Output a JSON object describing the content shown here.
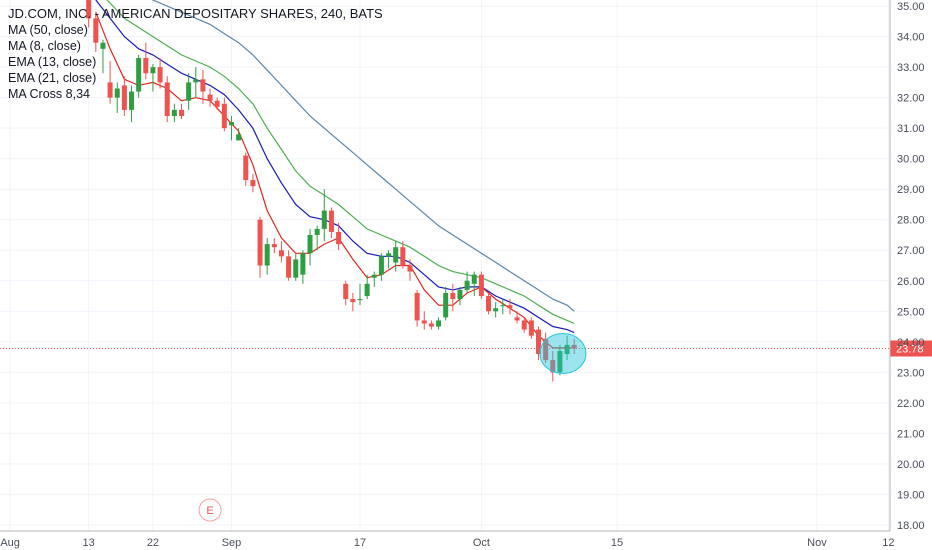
{
  "header": {
    "title": "JD.COM, INC. - AMERICAN DEPOSITARY SHARES, 240, BATS",
    "indicators": [
      "MA (50, close)",
      "MA (8, close)",
      "EMA (13, close)",
      "EMA (21, close)",
      "MA Cross 8,34"
    ]
  },
  "colors": {
    "up": "#2e9e43",
    "down": "#ef5350",
    "ma50": "#5b86a8",
    "ma8": "#e0271d",
    "ema13": "#1a1ab8",
    "ema21": "#4caf50",
    "price_line": "#ef5350",
    "highlight": "#26c6da",
    "grid": "#f0f3fa",
    "axis": "#b2b5be"
  },
  "chart_data": {
    "type": "candlestick",
    "y_axis": {
      "min": 17.8,
      "max": 35.2,
      "ticks": [
        "18.00",
        "19.00",
        "20.00",
        "21.00",
        "22.00",
        "23.00",
        "24.00",
        "25.00",
        "26.00",
        "27.00",
        "28.00",
        "29.00",
        "30.00",
        "31.00",
        "32.00",
        "33.00",
        "34.00",
        "35.00"
      ]
    },
    "x_axis": {
      "labels": [
        "Aug",
        "13",
        "22",
        "Sep",
        "17",
        "Oct",
        "15",
        "Nov",
        "12"
      ],
      "label_index": [
        1,
        12,
        21,
        32,
        50,
        67,
        86,
        114,
        124
      ]
    },
    "current_price": {
      "value": 23.78,
      "label": "23.78"
    },
    "earnings_marker": {
      "label": "E",
      "index": 29
    },
    "candles": [
      [
        12,
        35.2,
        35.6,
        34.3,
        34.6
      ],
      [
        13,
        34.6,
        34.8,
        33.5,
        33.8
      ],
      [
        14,
        33.6,
        33.9,
        32.8,
        33.8
      ],
      [
        15,
        32.5,
        33.2,
        31.8,
        32.0
      ],
      [
        16,
        32.0,
        32.5,
        31.5,
        32.3
      ],
      [
        17,
        32.4,
        32.7,
        31.4,
        31.6
      ],
      [
        18,
        31.6,
        32.4,
        31.2,
        32.2
      ],
      [
        19,
        32.2,
        33.4,
        32.0,
        33.3
      ],
      [
        20,
        33.3,
        33.8,
        32.6,
        32.8
      ],
      [
        21,
        32.8,
        33.1,
        32.2,
        33.0
      ],
      [
        22,
        33.0,
        33.3,
        32.3,
        32.5
      ],
      [
        23,
        32.5,
        32.7,
        31.2,
        31.4
      ],
      [
        24,
        31.4,
        31.8,
        31.2,
        31.6
      ],
      [
        25,
        31.6,
        31.8,
        31.3,
        31.4
      ],
      [
        26,
        31.9,
        32.8,
        31.6,
        32.5
      ],
      [
        27,
        32.5,
        33.0,
        32.0,
        32.6
      ],
      [
        28,
        32.6,
        32.9,
        31.8,
        32.2
      ],
      [
        29,
        32.1,
        32.3,
        31.7,
        31.9
      ],
      [
        30,
        31.9,
        32.0,
        31.6,
        31.7
      ],
      [
        31,
        31.8,
        32.0,
        30.9,
        31.0
      ],
      [
        32,
        31.1,
        31.4,
        30.6,
        31.2
      ],
      [
        33,
        30.6,
        31.0,
        30.6,
        30.8
      ],
      [
        34,
        30.1,
        30.2,
        29.1,
        29.3
      ],
      [
        35,
        29.3,
        29.5,
        28.9,
        29.1
      ],
      [
        36,
        28.0,
        28.1,
        26.1,
        26.5
      ],
      [
        37,
        26.5,
        27.4,
        26.2,
        27.2
      ],
      [
        38,
        27.2,
        27.4,
        26.9,
        27.1
      ],
      [
        39,
        27.0,
        27.3,
        26.6,
        26.8
      ],
      [
        40,
        26.8,
        27.0,
        26.0,
        26.1
      ],
      [
        41,
        26.1,
        26.9,
        26.0,
        26.7
      ],
      [
        42,
        26.2,
        27.0,
        25.9,
        26.9
      ],
      [
        43,
        26.9,
        27.7,
        26.5,
        27.5
      ],
      [
        44,
        27.5,
        27.8,
        27.0,
        27.7
      ],
      [
        45,
        27.7,
        29.0,
        27.3,
        28.3
      ],
      [
        46,
        28.3,
        28.4,
        27.4,
        27.6
      ],
      [
        47,
        27.6,
        27.9,
        27.0,
        27.2
      ],
      [
        48,
        25.9,
        26.0,
        25.2,
        25.4
      ],
      [
        49,
        25.4,
        25.6,
        25.0,
        25.3
      ],
      [
        50,
        25.4,
        25.9,
        25.2,
        25.4
      ],
      [
        51,
        25.5,
        26.2,
        25.4,
        25.9
      ],
      [
        52,
        26.1,
        26.3,
        25.8,
        26.2
      ],
      [
        53,
        26.2,
        26.9,
        26.0,
        26.8
      ],
      [
        54,
        26.8,
        27.0,
        26.4,
        26.9
      ],
      [
        55,
        26.6,
        27.3,
        26.3,
        27.1
      ],
      [
        56,
        27.1,
        27.3,
        26.4,
        26.5
      ],
      [
        57,
        26.5,
        26.7,
        26.0,
        26.3
      ],
      [
        58,
        25.6,
        25.7,
        24.5,
        24.7
      ],
      [
        59,
        24.7,
        25.0,
        24.4,
        24.6
      ],
      [
        60,
        24.6,
        24.7,
        24.4,
        24.5
      ],
      [
        61,
        24.5,
        24.8,
        24.4,
        24.7
      ],
      [
        62,
        24.8,
        25.8,
        24.7,
        25.6
      ],
      [
        63,
        25.6,
        25.9,
        25.0,
        25.4
      ],
      [
        64,
        25.4,
        25.8,
        25.2,
        25.7
      ],
      [
        65,
        25.7,
        26.3,
        25.6,
        26.0
      ],
      [
        66,
        25.9,
        26.3,
        25.5,
        26.2
      ],
      [
        67,
        26.2,
        26.3,
        25.4,
        25.5
      ],
      [
        68,
        25.5,
        25.6,
        24.9,
        25.0
      ],
      [
        69,
        25.0,
        25.3,
        24.8,
        25.1
      ],
      [
        70,
        25.2,
        25.4,
        24.9,
        25.2
      ],
      [
        71,
        25.2,
        25.4,
        24.9,
        25.1
      ],
      [
        72,
        24.8,
        25.0,
        24.6,
        24.7
      ],
      [
        73,
        24.7,
        24.8,
        24.3,
        24.4
      ],
      [
        74,
        24.7,
        24.8,
        24.1,
        24.2
      ],
      [
        75,
        24.4,
        24.5,
        23.4,
        23.6
      ],
      [
        76,
        24.1,
        24.3,
        23.3,
        23.4
      ],
      [
        77,
        23.4,
        23.7,
        22.7,
        23.0
      ],
      [
        78,
        23.0,
        23.9,
        22.9,
        23.7
      ],
      [
        79,
        23.6,
        24.2,
        23.4,
        23.9
      ],
      [
        80,
        23.9,
        24.1,
        23.6,
        23.78
      ]
    ],
    "ma8": [
      [
        13,
        34.8
      ],
      [
        15,
        33.6
      ],
      [
        17,
        32.6
      ],
      [
        19,
        32.4
      ],
      [
        21,
        32.5
      ],
      [
        23,
        32.3
      ],
      [
        25,
        31.9
      ],
      [
        27,
        32.0
      ],
      [
        29,
        31.9
      ],
      [
        31,
        31.4
      ],
      [
        33,
        30.9
      ],
      [
        35,
        29.8
      ],
      [
        37,
        28.3
      ],
      [
        39,
        27.4
      ],
      [
        41,
        26.9
      ],
      [
        43,
        26.9
      ],
      [
        45,
        27.2
      ],
      [
        47,
        27.4
      ],
      [
        49,
        26.7
      ],
      [
        51,
        26.1
      ],
      [
        53,
        26.2
      ],
      [
        55,
        26.5
      ],
      [
        57,
        26.5
      ],
      [
        59,
        25.7
      ],
      [
        61,
        25.2
      ],
      [
        63,
        25.2
      ],
      [
        65,
        25.6
      ],
      [
        67,
        25.8
      ],
      [
        69,
        25.4
      ],
      [
        71,
        25.1
      ],
      [
        73,
        24.8
      ],
      [
        75,
        24.2
      ],
      [
        77,
        23.8
      ],
      [
        79,
        23.8
      ],
      [
        80,
        23.8
      ]
    ],
    "ema13": [
      [
        13,
        35.2
      ],
      [
        15,
        34.6
      ],
      [
        17,
        34.0
      ],
      [
        19,
        33.6
      ],
      [
        21,
        33.4
      ],
      [
        23,
        33.1
      ],
      [
        25,
        32.8
      ],
      [
        27,
        32.6
      ],
      [
        29,
        32.4
      ],
      [
        31,
        32.1
      ],
      [
        33,
        31.6
      ],
      [
        35,
        31.0
      ],
      [
        37,
        30.0
      ],
      [
        39,
        29.2
      ],
      [
        41,
        28.5
      ],
      [
        43,
        28.1
      ],
      [
        45,
        28.0
      ],
      [
        47,
        27.8
      ],
      [
        49,
        27.3
      ],
      [
        51,
        26.9
      ],
      [
        53,
        26.8
      ],
      [
        55,
        26.8
      ],
      [
        57,
        26.6
      ],
      [
        59,
        26.2
      ],
      [
        61,
        25.8
      ],
      [
        63,
        25.7
      ],
      [
        65,
        25.8
      ],
      [
        67,
        25.8
      ],
      [
        69,
        25.5
      ],
      [
        71,
        25.3
      ],
      [
        73,
        25.1
      ],
      [
        75,
        24.8
      ],
      [
        77,
        24.5
      ],
      [
        79,
        24.4
      ],
      [
        80,
        24.3
      ]
    ],
    "ema21": [
      [
        13,
        35.6
      ],
      [
        15,
        35.1
      ],
      [
        17,
        34.6
      ],
      [
        19,
        34.3
      ],
      [
        21,
        34.0
      ],
      [
        23,
        33.7
      ],
      [
        25,
        33.4
      ],
      [
        27,
        33.2
      ],
      [
        29,
        33.0
      ],
      [
        31,
        32.7
      ],
      [
        33,
        32.3
      ],
      [
        35,
        31.8
      ],
      [
        37,
        31.0
      ],
      [
        39,
        30.3
      ],
      [
        41,
        29.6
      ],
      [
        43,
        29.1
      ],
      [
        45,
        28.8
      ],
      [
        47,
        28.5
      ],
      [
        49,
        28.1
      ],
      [
        51,
        27.7
      ],
      [
        53,
        27.5
      ],
      [
        55,
        27.3
      ],
      [
        57,
        27.1
      ],
      [
        59,
        26.8
      ],
      [
        61,
        26.5
      ],
      [
        63,
        26.3
      ],
      [
        65,
        26.2
      ],
      [
        67,
        26.1
      ],
      [
        69,
        25.9
      ],
      [
        71,
        25.7
      ],
      [
        73,
        25.5
      ],
      [
        75,
        25.2
      ],
      [
        77,
        24.9
      ],
      [
        79,
        24.7
      ],
      [
        80,
        24.6
      ]
    ],
    "ma50": [
      [
        19,
        35.4
      ],
      [
        21,
        35.2
      ],
      [
        23,
        35.0
      ],
      [
        25,
        34.8
      ],
      [
        27,
        34.6
      ],
      [
        29,
        34.4
      ],
      [
        31,
        34.1
      ],
      [
        33,
        33.8
      ],
      [
        35,
        33.4
      ],
      [
        37,
        32.9
      ],
      [
        39,
        32.4
      ],
      [
        41,
        31.9
      ],
      [
        43,
        31.4
      ],
      [
        45,
        31.0
      ],
      [
        47,
        30.6
      ],
      [
        49,
        30.2
      ],
      [
        51,
        29.8
      ],
      [
        53,
        29.4
      ],
      [
        55,
        29.0
      ],
      [
        57,
        28.6
      ],
      [
        59,
        28.2
      ],
      [
        61,
        27.8
      ],
      [
        63,
        27.5
      ],
      [
        65,
        27.2
      ],
      [
        67,
        26.9
      ],
      [
        69,
        26.6
      ],
      [
        71,
        26.3
      ],
      [
        73,
        26.0
      ],
      [
        75,
        25.7
      ],
      [
        77,
        25.4
      ],
      [
        79,
        25.2
      ],
      [
        80,
        25.0
      ]
    ]
  }
}
